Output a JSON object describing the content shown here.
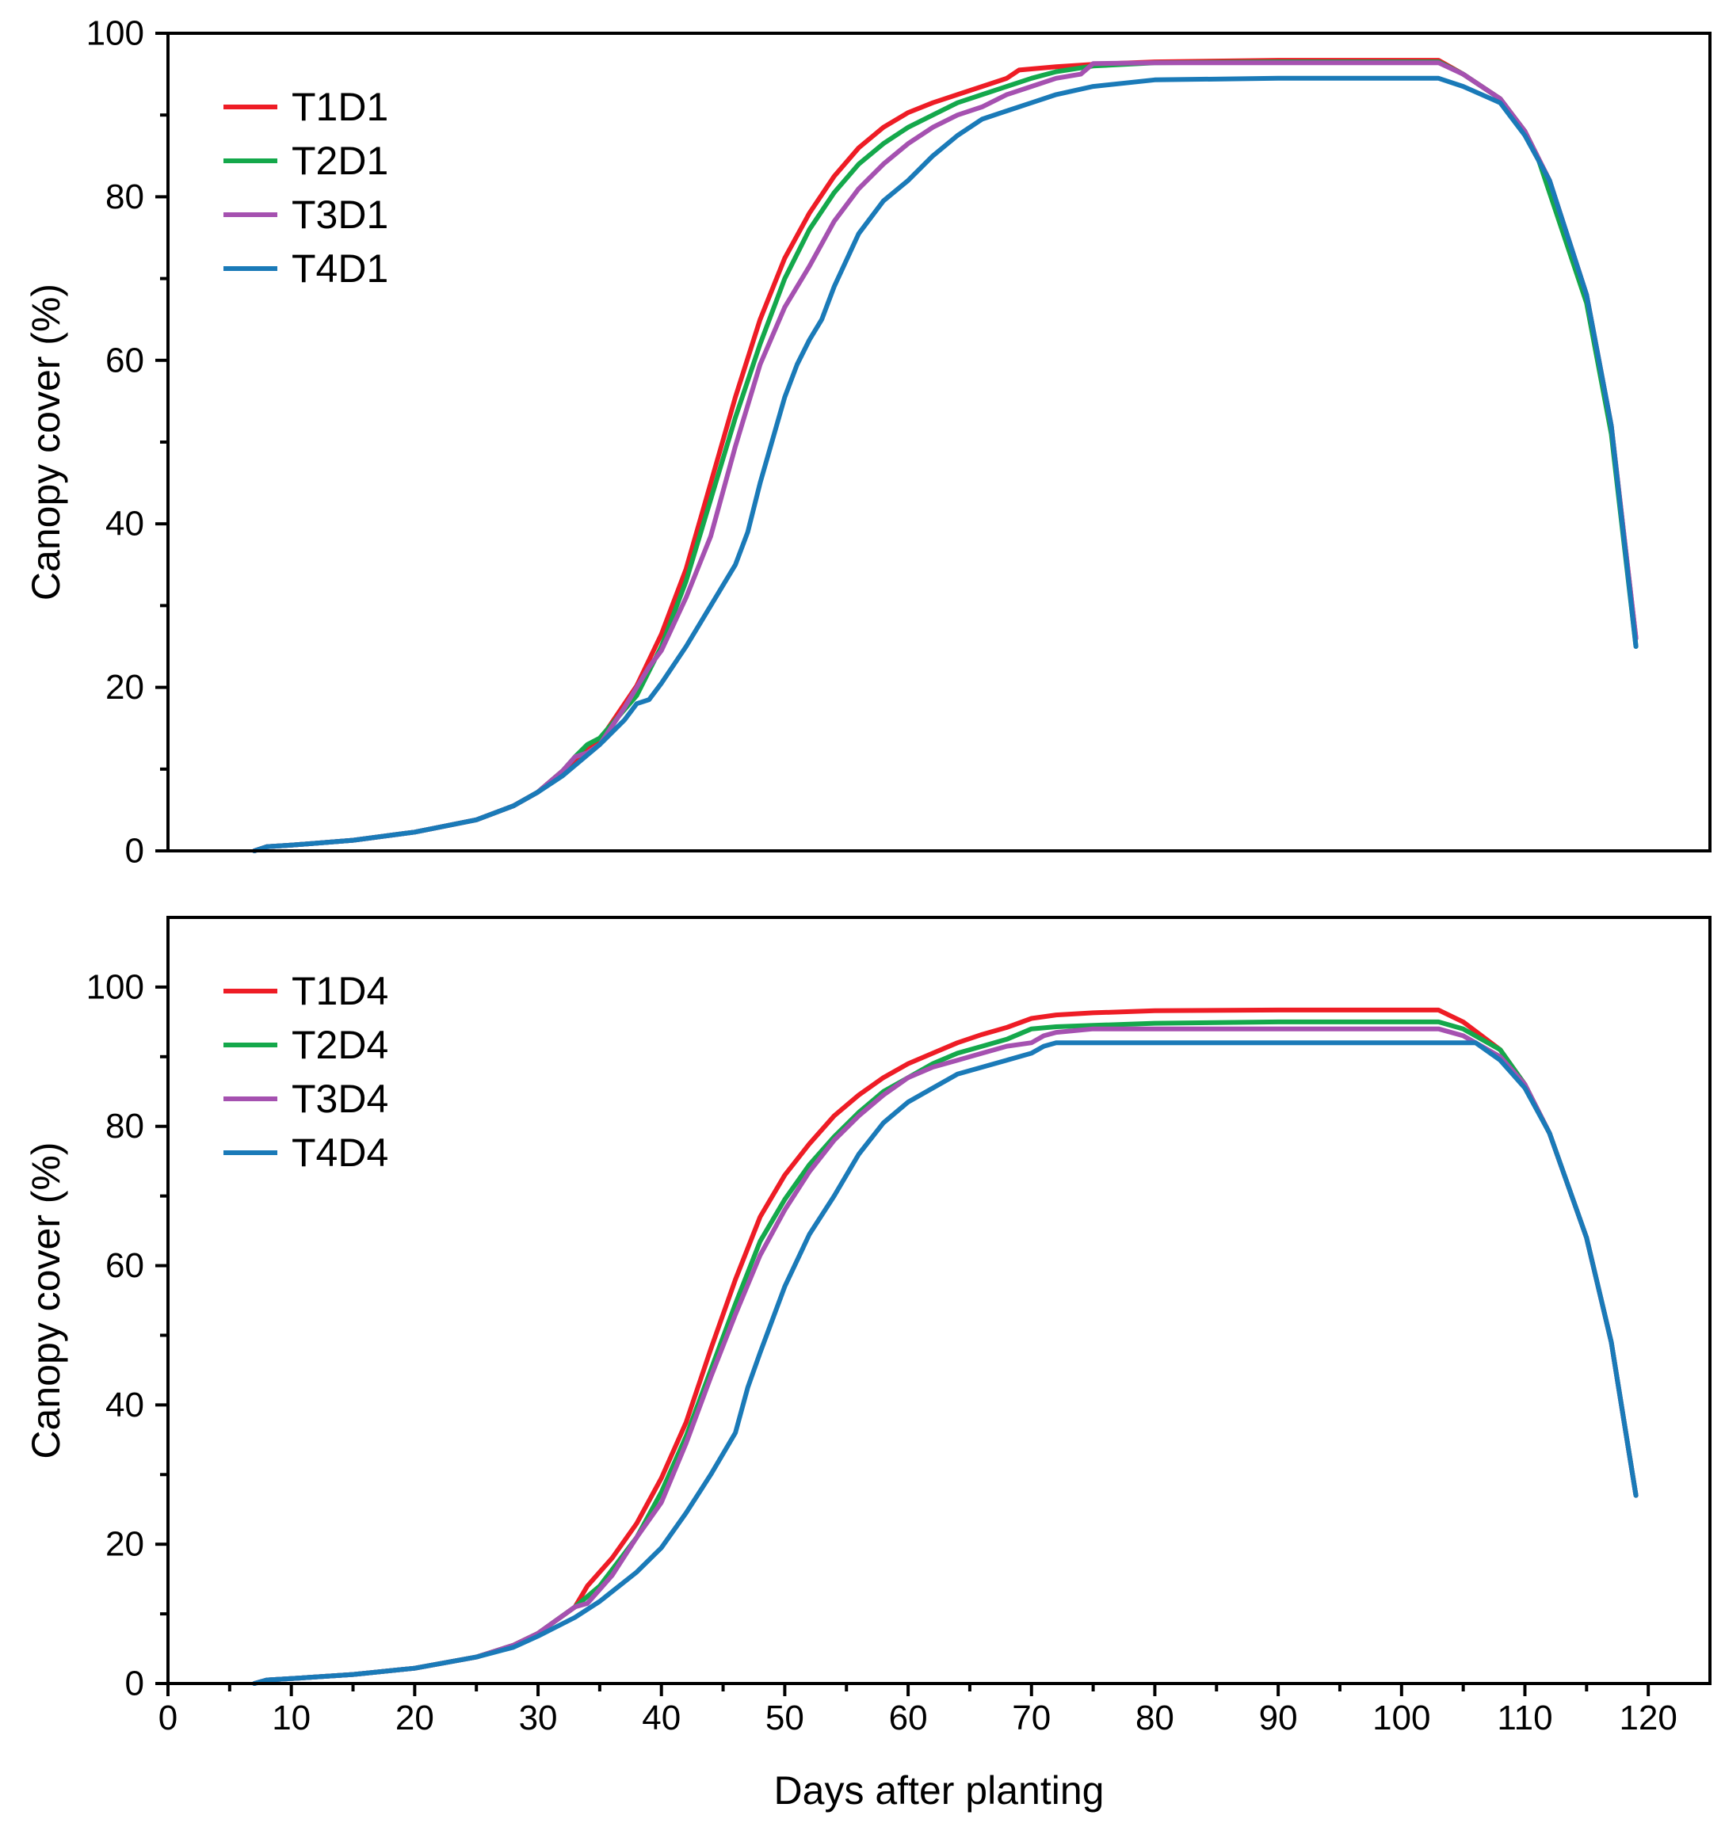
{
  "chart_data": [
    {
      "type": "line",
      "id": "top",
      "xlim": [
        0,
        125
      ],
      "ylim": [
        0,
        100
      ],
      "yticks": [
        0,
        20,
        40,
        60,
        80,
        100
      ],
      "yminor": [
        10,
        30,
        50,
        70,
        90
      ],
      "ylabel": "Canopy cover (%)",
      "legend_position": "top-left",
      "series": [
        {
          "name": "T1D1",
          "color": "#ee1c25",
          "x": [
            7,
            8,
            10,
            15,
            20,
            25,
            28,
            30,
            32,
            35,
            38,
            40,
            42,
            44,
            46,
            48,
            50,
            52,
            54,
            56,
            58,
            60,
            62,
            64,
            66,
            68,
            69,
            72,
            75,
            80,
            90,
            100,
            103,
            105,
            108,
            110,
            112,
            115,
            117,
            119
          ],
          "y": [
            0,
            0.5,
            0.7,
            1.3,
            2.3,
            3.8,
            5.5,
            7.2,
            9.8,
            13.5,
            20.2,
            26.5,
            34.5,
            45,
            55.5,
            65,
            72.5,
            78,
            82.5,
            86,
            88.5,
            90.3,
            91.5,
            92.5,
            93.5,
            94.5,
            95.5,
            95.9,
            96.2,
            96.5,
            96.7,
            96.7,
            96.7,
            95,
            92,
            88,
            82,
            68,
            52,
            26
          ]
        },
        {
          "name": "T2D1",
          "color": "#14a84b",
          "x": [
            7,
            8,
            10,
            15,
            20,
            25,
            28,
            30,
            32,
            33,
            34,
            35,
            38,
            40,
            42,
            44,
            46,
            48,
            50,
            52,
            54,
            56,
            58,
            60,
            62,
            64,
            66,
            68,
            70,
            72,
            75,
            80,
            90,
            100,
            103,
            105,
            108,
            110,
            111,
            115,
            117,
            119
          ],
          "y": [
            0,
            0.5,
            0.7,
            1.3,
            2.3,
            3.8,
            5.5,
            7.2,
            9.8,
            11.5,
            13,
            13.8,
            19,
            25,
            33,
            43,
            53,
            62,
            70,
            76,
            80.5,
            84,
            86.5,
            88.5,
            90,
            91.5,
            92.5,
            93.5,
            94.5,
            95.3,
            96,
            96.4,
            96.5,
            96.5,
            96.5,
            95,
            92,
            88,
            85,
            67,
            51,
            25
          ]
        },
        {
          "name": "T3D1",
          "color": "#a551b0",
          "x": [
            7,
            8,
            10,
            15,
            20,
            25,
            28,
            30,
            32,
            33,
            34,
            35,
            37,
            39,
            40,
            42,
            44,
            46,
            48,
            50,
            52,
            54,
            56,
            58,
            60,
            62,
            64,
            66,
            68,
            70,
            72,
            74,
            75,
            80,
            90,
            100,
            103,
            105,
            108,
            110,
            112,
            115,
            117,
            119
          ],
          "y": [
            0,
            0.5,
            0.7,
            1.3,
            2.3,
            3.8,
            5.5,
            7.2,
            9.8,
            11.5,
            12,
            13,
            17.5,
            22.5,
            24.5,
            31,
            38.5,
            49.5,
            59.5,
            66.5,
            71.5,
            77,
            81,
            84,
            86.5,
            88.5,
            90,
            91,
            92.5,
            93.5,
            94.5,
            95,
            96.3,
            96.4,
            96.4,
            96.4,
            96.4,
            95,
            92,
            88,
            82,
            68,
            52,
            26
          ]
        },
        {
          "name": "T4D1",
          "color": "#1a7ab8",
          "x": [
            7,
            8,
            10,
            15,
            20,
            25,
            28,
            30,
            32,
            35,
            37,
            38,
            39,
            40,
            42,
            44,
            46,
            47,
            48,
            50,
            51,
            52,
            53,
            54,
            56,
            58,
            60,
            62,
            64,
            66,
            68,
            70,
            72,
            75,
            80,
            90,
            100,
            103,
            105,
            108,
            110,
            112,
            115,
            117,
            119
          ],
          "y": [
            0,
            0.5,
            0.7,
            1.3,
            2.3,
            3.8,
            5.5,
            7.2,
            9.2,
            13,
            16,
            18,
            18.5,
            20.5,
            25,
            30,
            35,
            39,
            45,
            55.5,
            59.5,
            62.5,
            65,
            69,
            75.5,
            79.5,
            82,
            85,
            87.5,
            89.5,
            90.5,
            91.5,
            92.5,
            93.5,
            94.3,
            94.5,
            94.5,
            94.5,
            93.5,
            91.5,
            87.5,
            82,
            68,
            52,
            25
          ]
        }
      ]
    },
    {
      "type": "line",
      "id": "bottom",
      "xlim": [
        0,
        125
      ],
      "ylim": [
        0,
        110
      ],
      "yticks": [
        0,
        20,
        40,
        60,
        80,
        100
      ],
      "yminor": [
        10,
        30,
        50,
        70,
        90
      ],
      "xticks": [
        0,
        10,
        20,
        30,
        40,
        50,
        60,
        70,
        80,
        90,
        100,
        110,
        120
      ],
      "xminor": [
        5,
        15,
        25,
        35,
        45,
        55,
        65,
        75,
        85,
        95,
        105,
        115
      ],
      "ylabel": "Canopy cover (%)",
      "xlabel": "Days after planting",
      "legend_position": "top-left",
      "series": [
        {
          "name": "T1D4",
          "color": "#ee1c25",
          "x": [
            7,
            8,
            10,
            15,
            20,
            25,
            28,
            30,
            33,
            34,
            36,
            38,
            40,
            42,
            44,
            46,
            48,
            50,
            52,
            54,
            56,
            58,
            60,
            62,
            64,
            66,
            68,
            70,
            72,
            75,
            80,
            90,
            100,
            103,
            105,
            108,
            110,
            112,
            115,
            117,
            119
          ],
          "y": [
            0,
            0.5,
            0.7,
            1.3,
            2.2,
            3.8,
            5.5,
            7.2,
            11,
            14,
            18,
            23,
            29.5,
            37.5,
            48,
            58,
            67,
            73,
            77.5,
            81.5,
            84.5,
            87,
            89,
            90.5,
            92,
            93.2,
            94.2,
            95.5,
            96,
            96.3,
            96.6,
            96.7,
            96.7,
            96.7,
            95,
            91,
            86,
            79,
            64,
            49,
            27
          ]
        },
        {
          "name": "T2D4",
          "color": "#14a84b",
          "x": [
            7,
            8,
            10,
            15,
            20,
            25,
            28,
            30,
            33,
            35,
            38,
            40,
            42,
            44,
            46,
            48,
            50,
            52,
            54,
            56,
            58,
            60,
            62,
            64,
            66,
            68,
            70,
            72,
            75,
            80,
            90,
            100,
            103,
            105,
            108,
            110,
            112,
            115,
            117,
            119
          ],
          "y": [
            0,
            0.5,
            0.7,
            1.3,
            2.2,
            3.8,
            5.5,
            7.2,
            11,
            14,
            21,
            27.5,
            35.5,
            45,
            54.5,
            63.5,
            69.5,
            74.5,
            78.5,
            82,
            85,
            87,
            89,
            90.5,
            91.5,
            92.5,
            94,
            94.3,
            94.5,
            94.8,
            95,
            95,
            95,
            94,
            91,
            86,
            79,
            64,
            49,
            27
          ]
        },
        {
          "name": "T3D4",
          "color": "#a551b0",
          "x": [
            7,
            8,
            10,
            15,
            20,
            25,
            28,
            30,
            33,
            34,
            36,
            38,
            40,
            42,
            44,
            46,
            48,
            50,
            52,
            54,
            56,
            58,
            60,
            62,
            64,
            66,
            68,
            70,
            71,
            72,
            75,
            80,
            90,
            100,
            103,
            105,
            108,
            110,
            112,
            115,
            117,
            119
          ],
          "y": [
            0,
            0.5,
            0.7,
            1.3,
            2.2,
            3.8,
            5.5,
            7.2,
            11,
            11.5,
            15.5,
            21,
            26,
            34.5,
            44,
            53,
            61.5,
            68,
            73.5,
            78,
            81.5,
            84.5,
            87,
            88.5,
            89.5,
            90.5,
            91.5,
            92,
            93,
            93.5,
            94,
            94,
            94,
            94,
            94,
            93,
            90,
            86,
            79,
            64,
            49,
            27
          ]
        },
        {
          "name": "T4D4",
          "color": "#1a7ab8",
          "x": [
            7,
            8,
            10,
            15,
            20,
            25,
            28,
            30,
            33,
            35,
            38,
            40,
            42,
            44,
            46,
            47,
            48,
            50,
            52,
            54,
            56,
            58,
            60,
            62,
            64,
            66,
            68,
            70,
            71,
            72,
            75,
            80,
            90,
            100,
            103,
            105,
            106,
            108,
            110,
            112,
            115,
            117,
            119
          ],
          "y": [
            0,
            0.5,
            0.7,
            1.3,
            2.2,
            3.8,
            5.2,
            6.8,
            9.5,
            11.8,
            16,
            19.5,
            24.5,
            30,
            36,
            42.5,
            47.5,
            57,
            64.5,
            70,
            76,
            80.5,
            83.5,
            85.5,
            87.5,
            88.5,
            89.5,
            90.5,
            91.5,
            92,
            92,
            92,
            92,
            92,
            92,
            92,
            92,
            89.5,
            85.5,
            79,
            64,
            49,
            27
          ]
        }
      ]
    }
  ]
}
